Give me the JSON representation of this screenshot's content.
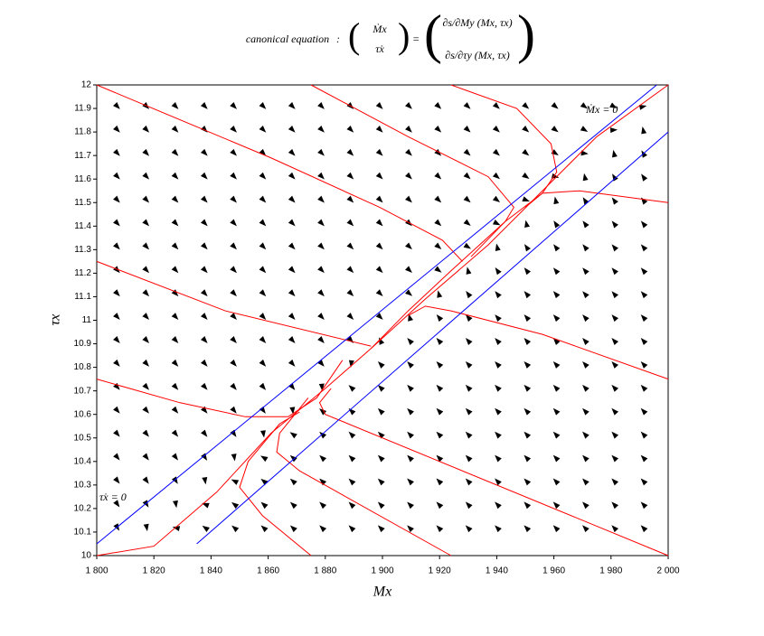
{
  "chart_data": {
    "type": "line",
    "title": "canonical equation",
    "equation": {
      "lhs": [
        "Ṁx",
        "τ̇x"
      ],
      "rhs": [
        "∂s/∂My (Mx, τx)",
        "∂s/∂τy (Mx, τx)"
      ]
    },
    "x_label": "Mx",
    "y_label": "τx",
    "annotations": [
      "Ṁx = 0",
      "τ̇x = 0"
    ],
    "annotation_color": "#3333ff",
    "xlim": [
      1800,
      2000
    ],
    "ylim": [
      10,
      12
    ],
    "xticks": [
      {
        "value": 1800,
        "label": "1 800"
      },
      {
        "value": 1820,
        "label": "1 820"
      },
      {
        "value": 1840,
        "label": "1 840"
      },
      {
        "value": 1860,
        "label": "1 860"
      },
      {
        "value": 1880,
        "label": "1 880"
      },
      {
        "value": 1900,
        "label": "1 900"
      },
      {
        "value": 1920,
        "label": "1 920"
      },
      {
        "value": 1940,
        "label": "1 940"
      },
      {
        "value": 1960,
        "label": "1 960"
      },
      {
        "value": 1980,
        "label": "1 980"
      },
      {
        "value": 2000,
        "label": "2 000"
      }
    ],
    "yticks": [
      10,
      10.1,
      10.2,
      10.3,
      10.4,
      10.5,
      10.6,
      10.7,
      10.8,
      10.9,
      11,
      11.1,
      11.2,
      11.3,
      11.4,
      11.5,
      11.6,
      11.7,
      11.8,
      11.9,
      12
    ],
    "series": [
      {
        "color": "#ff0000",
        "x": [
          1800,
          1820,
          1842,
          1861,
          1880,
          1896,
          1915,
          1937,
          1956,
          1975,
          2000
        ],
        "y": [
          10,
          10.04,
          10.27,
          10.52,
          10.71,
          10.88,
          11.09,
          11.32,
          11.55,
          11.78,
          12
        ]
      },
      {
        "color": "#ff0000",
        "x": [
          1800,
          1861,
          1899,
          1921,
          1928
        ],
        "y": [
          12,
          11.69,
          11.48,
          11.34,
          11.25
        ]
      },
      {
        "color": "#ff0000",
        "x": [
          1875,
          1909,
          1937,
          1946,
          1943,
          1924,
          1909,
          1896
        ],
        "y": [
          12,
          11.78,
          11.61,
          11.48,
          11.42,
          11.21,
          11.04,
          10.88
        ]
      },
      {
        "color": "#ff0000",
        "x": [
          1924,
          1947,
          1959,
          1961,
          1956,
          1950
        ],
        "y": [
          12,
          11.9,
          11.75,
          11.63,
          11.54,
          11.48
        ]
      },
      {
        "color": "#ff0000",
        "x": [
          1800,
          1845,
          1896
        ],
        "y": [
          11.25,
          11.04,
          10.89
        ]
      },
      {
        "color": "#ff0000",
        "x": [
          2000,
          1956,
          1924,
          1915,
          1909
        ],
        "y": [
          10.75,
          10.94,
          11.04,
          11.06,
          11.02
        ]
      },
      {
        "color": "#ff0000",
        "x": [
          1800,
          1829,
          1852,
          1867,
          1877,
          1886
        ],
        "y": [
          10.75,
          10.65,
          10.59,
          10.59,
          10.67,
          10.83
        ]
      },
      {
        "color": "#ff0000",
        "x": [
          2000,
          1969,
          1956,
          1943,
          1931
        ],
        "y": [
          11.5,
          11.55,
          11.54,
          11.42,
          11.27
        ]
      },
      {
        "color": "#ff0000",
        "x": [
          1924,
          1871,
          1863,
          1864,
          1874
        ],
        "y": [
          10,
          10.36,
          10.44,
          10.52,
          10.67
        ]
      },
      {
        "color": "#ff0000",
        "x": [
          2000,
          1880,
          1878,
          1882
        ],
        "y": [
          10,
          10.6,
          10.65,
          10.71
        ]
      },
      {
        "color": "#ff0000",
        "x": [
          1875,
          1858,
          1850,
          1853,
          1864,
          1871
        ],
        "y": [
          10,
          10.17,
          10.29,
          10.4,
          10.56,
          10.61
        ]
      },
      {
        "color": "#0000ff",
        "x": [
          1800,
          1996
        ],
        "y": [
          10.05,
          12
        ]
      },
      {
        "color": "#0000ff",
        "x": [
          1835,
          2000
        ],
        "y": [
          10.05,
          11.8
        ]
      }
    ]
  }
}
